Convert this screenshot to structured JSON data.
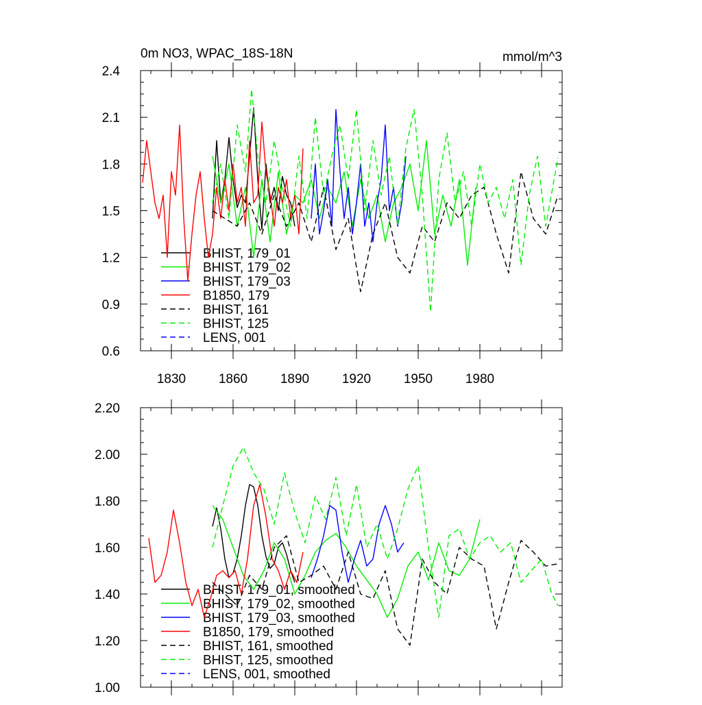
{
  "chart_data": [
    {
      "type": "line",
      "title": "0m NO3, WPAC_18S-18N",
      "units": "mmol/m^3",
      "xlim": [
        1815,
        2020
      ],
      "ylim": [
        0.6,
        2.4
      ],
      "yticks": [
        "0.6",
        "0.9",
        "1.2",
        "1.5",
        "1.8",
        "2.1",
        "2.4"
      ],
      "xticks": [
        "1830",
        "1860",
        "1890",
        "1920",
        "1950",
        "1980"
      ],
      "series": [
        {
          "name": "BHIST, 179_01",
          "color": "#000000",
          "dashed": false,
          "x": [
            1850,
            1852,
            1854,
            1856,
            1858,
            1860,
            1862,
            1864,
            1866,
            1868,
            1870,
            1872,
            1874,
            1876,
            1878,
            1880,
            1882,
            1884,
            1886,
            1888,
            1890
          ],
          "y": [
            1.45,
            1.95,
            1.55,
            1.7,
            1.97,
            1.7,
            1.52,
            1.6,
            1.55,
            1.85,
            2.16,
            1.7,
            1.38,
            1.8,
            1.55,
            1.65,
            1.5,
            1.72,
            1.6,
            1.55,
            1.4
          ]
        },
        {
          "name": "BHIST, 179_02",
          "color": "#00ee00",
          "dashed": false,
          "x": [
            1850,
            1854,
            1858,
            1862,
            1866,
            1870,
            1874,
            1878,
            1882,
            1886,
            1890,
            1894,
            1898,
            1902,
            1906,
            1910,
            1914,
            1918,
            1922,
            1926,
            1930,
            1934,
            1938,
            1942,
            1946,
            1950,
            1954,
            1958,
            1962,
            1966,
            1970,
            1974,
            1978
          ],
          "y": [
            1.85,
            1.55,
            1.8,
            1.4,
            1.65,
            1.2,
            1.7,
            1.3,
            1.75,
            1.35,
            1.6,
            1.55,
            1.7,
            1.45,
            1.65,
            1.55,
            1.75,
            1.4,
            1.7,
            1.45,
            1.6,
            1.3,
            1.55,
            1.65,
            1.8,
            1.5,
            1.95,
            1.35,
            1.6,
            1.4,
            1.7,
            1.15,
            1.65
          ]
        },
        {
          "name": "BHIST, 179_03",
          "color": "#0000ff",
          "dashed": false,
          "x": [
            1898,
            1900,
            1902,
            1904,
            1906,
            1908,
            1910,
            1912,
            1914,
            1916,
            1918,
            1920,
            1922,
            1924,
            1926,
            1928,
            1930,
            1932,
            1934,
            1936,
            1938,
            1940,
            1942,
            1944
          ],
          "y": [
            1.45,
            1.8,
            1.35,
            1.5,
            1.7,
            1.4,
            2.15,
            1.75,
            1.45,
            1.65,
            1.35,
            1.55,
            1.8,
            1.4,
            1.55,
            1.3,
            1.55,
            1.7,
            2.05,
            1.5,
            1.65,
            1.4,
            1.55,
            1.85
          ]
        },
        {
          "name": "B1850, 179",
          "color": "#ff0000",
          "dashed": false,
          "x": [
            1816,
            1818,
            1820,
            1822,
            1824,
            1826,
            1828,
            1830,
            1832,
            1834,
            1836,
            1838,
            1840,
            1842,
            1844,
            1846,
            1848,
            1850,
            1852,
            1854,
            1856,
            1858,
            1860,
            1862,
            1864,
            1866,
            1868,
            1870,
            1872,
            1874,
            1876,
            1878,
            1880,
            1882,
            1884,
            1886,
            1888,
            1890,
            1892,
            1894
          ],
          "y": [
            1.68,
            1.95,
            1.75,
            1.55,
            1.45,
            1.6,
            1.2,
            1.75,
            1.6,
            2.05,
            1.45,
            1.05,
            1.35,
            1.6,
            1.75,
            1.45,
            1.2,
            1.35,
            1.65,
            1.45,
            1.7,
            1.5,
            1.8,
            1.55,
            1.65,
            1.4,
            1.95,
            1.55,
            1.6,
            2.07,
            1.75,
            1.6,
            1.4,
            1.65,
            1.55,
            1.7,
            1.45,
            1.6,
            1.35,
            1.9
          ]
        },
        {
          "name": "BHIST, 161",
          "color": "#000000",
          "dashed": true,
          "x": [
            1850,
            1856,
            1862,
            1868,
            1874,
            1880,
            1886,
            1892,
            1898,
            1904,
            1910,
            1916,
            1922,
            1928,
            1934,
            1940,
            1946,
            1952,
            1958,
            1964,
            1970,
            1976,
            1982,
            1988,
            1994,
            2000,
            2006,
            2012,
            2018
          ],
          "y": [
            1.5,
            1.45,
            1.4,
            1.55,
            1.35,
            1.6,
            1.4,
            1.55,
            1.3,
            1.65,
            1.25,
            1.45,
            0.98,
            1.35,
            1.55,
            1.2,
            1.1,
            1.4,
            1.3,
            1.55,
            1.45,
            1.6,
            1.65,
            1.35,
            1.1,
            1.75,
            1.45,
            1.35,
            1.6
          ]
        },
        {
          "name": "BHIST, 125",
          "color": "#00ee00",
          "dashed": true,
          "x": [
            1850,
            1854,
            1858,
            1862,
            1866,
            1869,
            1872,
            1876,
            1880,
            1884,
            1888,
            1892,
            1896,
            1900,
            1904,
            1908,
            1912,
            1916,
            1920,
            1924,
            1928,
            1932,
            1936,
            1940,
            1944,
            1948,
            1952,
            1956,
            1960,
            1964,
            1968,
            1972,
            1976,
            1980,
            1984,
            1988,
            1992,
            1996,
            2000,
            2004,
            2008,
            2012,
            2018
          ],
          "y": [
            1.55,
            1.8,
            1.45,
            2.05,
            1.75,
            2.28,
            1.85,
            1.55,
            1.95,
            1.65,
            1.4,
            1.85,
            1.45,
            2.1,
            1.6,
            1.85,
            2.05,
            1.7,
            2.15,
            1.5,
            1.95,
            1.6,
            1.85,
            1.4,
            1.9,
            2.15,
            1.6,
            0.85,
            1.7,
            2.0,
            1.55,
            1.75,
            1.4,
            1.8,
            1.55,
            1.65,
            1.45,
            1.7,
            1.15,
            1.6,
            1.85,
            1.4,
            1.84
          ]
        },
        {
          "name": "LENS, 001",
          "color": "#0000ff",
          "dashed": true,
          "x": [],
          "y": []
        }
      ]
    },
    {
      "type": "line",
      "xlim": [
        1815,
        2020
      ],
      "ylim": [
        1.0,
        2.2
      ],
      "yticks": [
        "1.00",
        "1.20",
        "1.40",
        "1.60",
        "1.80",
        "2.00",
        "2.20"
      ],
      "series": [
        {
          "name": "BHIST, 179_01, smoothed",
          "color": "#000000",
          "dashed": false,
          "x": [
            1850,
            1852,
            1854,
            1856,
            1858,
            1860,
            1862,
            1864,
            1866,
            1868,
            1870,
            1872,
            1874,
            1876,
            1878,
            1880,
            1882,
            1884,
            1886,
            1888,
            1890
          ],
          "y": [
            1.69,
            1.77,
            1.68,
            1.55,
            1.47,
            1.49,
            1.55,
            1.65,
            1.78,
            1.87,
            1.86,
            1.78,
            1.65,
            1.56,
            1.51,
            1.53,
            1.6,
            1.62,
            1.57,
            1.5,
            1.45
          ]
        },
        {
          "name": "BHIST, 179_02, smoothed",
          "color": "#00ee00",
          "dashed": false,
          "x": [
            1850,
            1855,
            1860,
            1865,
            1870,
            1875,
            1880,
            1885,
            1890,
            1895,
            1900,
            1905,
            1910,
            1915,
            1920,
            1925,
            1930,
            1935,
            1940,
            1945,
            1950,
            1955,
            1960,
            1965,
            1970,
            1975,
            1980
          ],
          "y": [
            1.78,
            1.72,
            1.6,
            1.48,
            1.42,
            1.5,
            1.62,
            1.55,
            1.4,
            1.48,
            1.58,
            1.63,
            1.66,
            1.6,
            1.52,
            1.46,
            1.4,
            1.3,
            1.38,
            1.52,
            1.58,
            1.46,
            1.62,
            1.5,
            1.48,
            1.55,
            1.72
          ]
        },
        {
          "name": "BHIST, 179_03, smoothed",
          "color": "#0000ff",
          "dashed": false,
          "x": [
            1898,
            1901,
            1904,
            1907,
            1910,
            1913,
            1916,
            1919,
            1922,
            1925,
            1928,
            1931,
            1934,
            1937,
            1940,
            1943
          ],
          "y": [
            1.47,
            1.55,
            1.65,
            1.78,
            1.76,
            1.58,
            1.45,
            1.55,
            1.63,
            1.52,
            1.55,
            1.7,
            1.78,
            1.7,
            1.58,
            1.62
          ]
        },
        {
          "name": "B1850, 179, smoothed",
          "color": "#ff0000",
          "dashed": false,
          "x": [
            1819,
            1822,
            1825,
            1828,
            1831,
            1834,
            1837,
            1840,
            1843,
            1846,
            1849,
            1852,
            1855,
            1858,
            1861,
            1864,
            1867,
            1870,
            1873,
            1876,
            1879,
            1882,
            1885,
            1888,
            1891,
            1894
          ],
          "y": [
            1.64,
            1.45,
            1.48,
            1.58,
            1.76,
            1.62,
            1.45,
            1.35,
            1.42,
            1.3,
            1.38,
            1.48,
            1.5,
            1.47,
            1.5,
            1.4,
            1.55,
            1.78,
            1.87,
            1.73,
            1.55,
            1.5,
            1.42,
            1.5,
            1.45,
            1.58
          ]
        },
        {
          "name": "BHIST, 161, smoothed",
          "color": "#000000",
          "dashed": true,
          "x": [
            1850,
            1856,
            1862,
            1868,
            1874,
            1880,
            1886,
            1892,
            1898,
            1904,
            1910,
            1916,
            1922,
            1928,
            1934,
            1940,
            1946,
            1952,
            1958,
            1964,
            1970,
            1976,
            1982,
            1988,
            1994,
            2000,
            2006,
            2012,
            2018
          ],
          "y": [
            1.45,
            1.4,
            1.35,
            1.48,
            1.42,
            1.6,
            1.65,
            1.45,
            1.48,
            1.52,
            1.42,
            1.58,
            1.4,
            1.38,
            1.5,
            1.25,
            1.18,
            1.55,
            1.45,
            1.4,
            1.6,
            1.55,
            1.52,
            1.25,
            1.45,
            1.63,
            1.58,
            1.52,
            1.53
          ]
        },
        {
          "name": "BHIST, 125, smoothed",
          "color": "#00ee00",
          "dashed": true,
          "x": [
            1850,
            1855,
            1860,
            1865,
            1870,
            1875,
            1880,
            1885,
            1890,
            1895,
            1900,
            1905,
            1910,
            1915,
            1920,
            1925,
            1930,
            1935,
            1940,
            1945,
            1950,
            1955,
            1960,
            1965,
            1970,
            1975,
            1980,
            1985,
            1990,
            1995,
            2000,
            2005,
            2010,
            2015,
            2018
          ],
          "y": [
            1.6,
            1.78,
            1.95,
            2.03,
            1.92,
            1.85,
            1.7,
            1.92,
            1.75,
            1.62,
            1.82,
            1.72,
            1.9,
            1.65,
            1.87,
            1.6,
            1.7,
            1.55,
            1.68,
            1.85,
            1.95,
            1.6,
            1.3,
            1.65,
            1.68,
            1.55,
            1.62,
            1.65,
            1.58,
            1.62,
            1.45,
            1.5,
            1.55,
            1.4,
            1.35
          ]
        },
        {
          "name": "LENS, 001, smoothed",
          "color": "#0000ff",
          "dashed": true,
          "x": [],
          "y": []
        }
      ]
    }
  ]
}
